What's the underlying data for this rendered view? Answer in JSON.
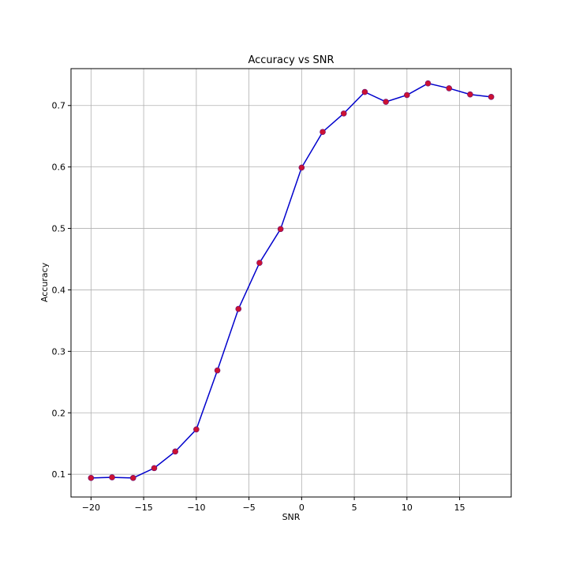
{
  "chart_data": {
    "type": "line",
    "title": "Accuracy vs SNR",
    "xlabel": "SNR",
    "ylabel": "Accuracy",
    "xlim": [
      -21.9,
      19.9
    ],
    "ylim": [
      0.063,
      0.76
    ],
    "xticks": [
      -20,
      -15,
      -10,
      -5,
      0,
      5,
      10,
      15
    ],
    "xtick_labels": [
      "−20",
      "−15",
      "−10",
      "−5",
      "0",
      "5",
      "10",
      "15"
    ],
    "yticks": [
      0.1,
      0.2,
      0.3,
      0.4,
      0.5,
      0.6,
      0.7
    ],
    "ytick_labels": [
      "0.1",
      "0.2",
      "0.3",
      "0.4",
      "0.5",
      "0.6",
      "0.7"
    ],
    "grid": true,
    "line_color": "#0000cc",
    "marker_color": "#cc1133",
    "series": [
      {
        "x": [
          -20,
          -18,
          -16,
          -14,
          -12,
          -10,
          -8,
          -6,
          -4,
          -2,
          0,
          2,
          4,
          6,
          8,
          10,
          12,
          14,
          16,
          18
        ],
        "values": [
          0.094,
          0.095,
          0.094,
          0.11,
          0.137,
          0.173,
          0.269,
          0.369,
          0.444,
          0.499,
          0.599,
          0.657,
          0.687,
          0.722,
          0.706,
          0.717,
          0.736,
          0.728,
          0.718,
          0.714
        ]
      }
    ]
  }
}
